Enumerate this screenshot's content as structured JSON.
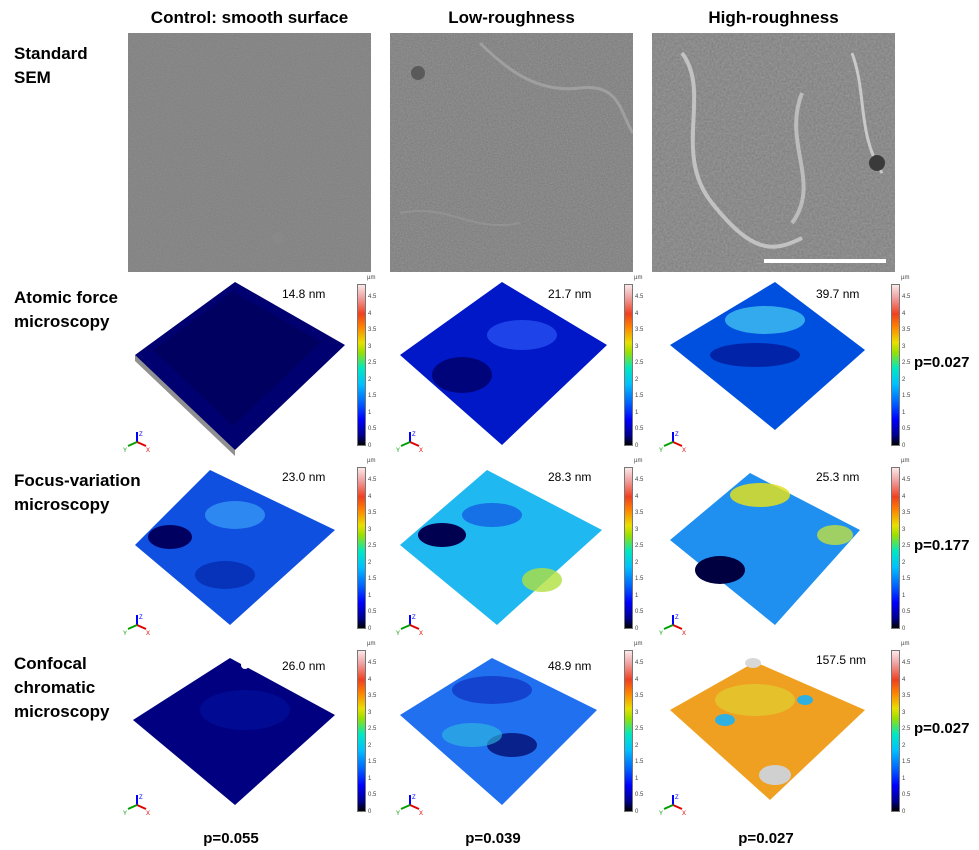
{
  "columns": [
    "Control: smooth surface",
    "Low-roughness",
    "High-roughness"
  ],
  "rows": [
    "Standard SEM",
    "Atomic force microscopy",
    "Focus-variation microscopy",
    "Confocal chromatic microscopy"
  ],
  "roughness_values": [
    [
      "14.8 nm",
      "21.7 nm",
      "39.7 nm"
    ],
    [
      "23.0 nm",
      "28.3 nm",
      "25.3 nm"
    ],
    [
      "26.0 nm",
      "48.9 nm",
      "157.5 nm"
    ]
  ],
  "row_p_values": [
    "p=0.027",
    "p=0.177",
    "p=0.027"
  ],
  "column_p_values": [
    "p=0.055",
    "p=0.039",
    "p=0.027"
  ],
  "colorbar": {
    "unit": "µm",
    "ticks": [
      "4.5",
      "4",
      "3.5",
      "3",
      "2.5",
      "2",
      "1.5",
      "1",
      "0.5",
      "0"
    ],
    "colors": [
      "#000000",
      "#00008b",
      "#0000ff",
      "#00c0ff",
      "#9ae000",
      "#e8e000",
      "#ff8000",
      "#f0a0a0"
    ]
  },
  "axes_letters": {
    "x": "X",
    "y": "Y",
    "z": "Z"
  }
}
